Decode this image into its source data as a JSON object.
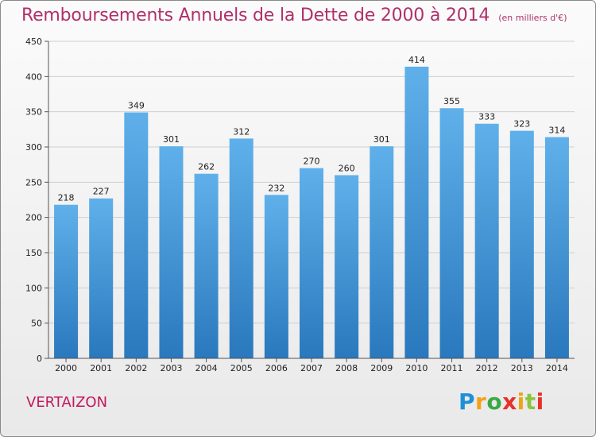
{
  "header": {
    "title": "Remboursements Annuels de la Dette de 2000 à 2014",
    "unit": "(en milliers d'€)"
  },
  "footer": {
    "commune": "VERTAIZON",
    "brand": "Proxiti"
  },
  "chart_data": {
    "type": "bar",
    "title": "Remboursements Annuels de la Dette de 2000 à 2014",
    "subtitle": "(en milliers d'€)",
    "xlabel": "",
    "ylabel": "",
    "categories": [
      "2000",
      "2001",
      "2002",
      "2003",
      "2004",
      "2005",
      "2006",
      "2007",
      "2008",
      "2009",
      "2010",
      "2011",
      "2012",
      "2013",
      "2014"
    ],
    "values": [
      218,
      227,
      349,
      301,
      262,
      312,
      232,
      270,
      260,
      301,
      414,
      355,
      333,
      323,
      314
    ],
    "ylim": [
      0,
      450
    ],
    "yticks": [
      0,
      50,
      100,
      150,
      200,
      250,
      300,
      350,
      400,
      450
    ],
    "grid": true,
    "bar_color_top": "#5fb0ea",
    "bar_color_bottom": "#2a78bd"
  },
  "colors": {
    "title": "#b0306a",
    "commune": "#c2185b"
  }
}
